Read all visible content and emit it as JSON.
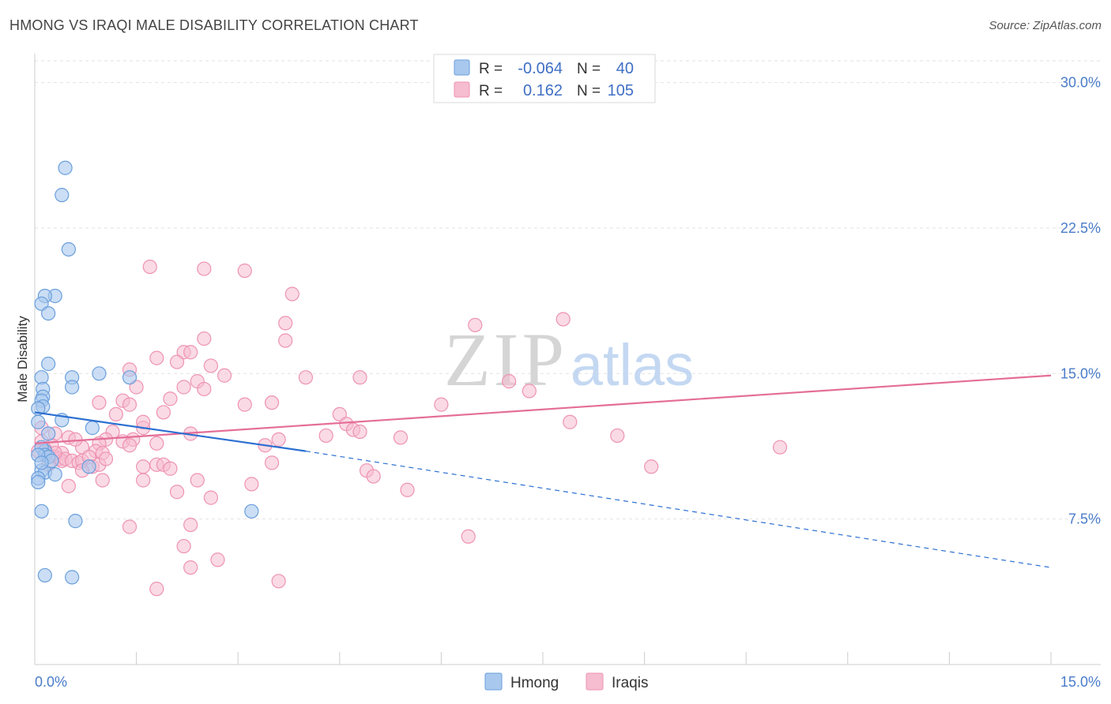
{
  "title": "HMONG VS IRAQI MALE DISABILITY CORRELATION CHART",
  "source": "Source: ZipAtlas.com",
  "watermark": {
    "zip": "ZIP",
    "atlas": "atlas"
  },
  "colors": {
    "hmong_fill": "#a9c8ee",
    "hmong_stroke": "#6a9fdc",
    "hmong_line": "#2c6fd1",
    "iraqi_fill": "#f6bcd0",
    "iraqi_stroke": "#ee93b2",
    "iraqi_line": "#e46e98",
    "tick": "#4a7cc9",
    "grid": "#e2e2e2"
  },
  "legend": {
    "rows": [
      {
        "r_label": "R =",
        "r_value": "-0.064",
        "n_label": "N =",
        "n_value": "40"
      },
      {
        "r_label": "R =",
        "r_value": "0.162",
        "n_label": "N =",
        "n_value": "105"
      }
    ]
  },
  "bottom_legend": [
    "Hmong",
    "Iraqis"
  ],
  "chart_data": {
    "type": "scatter",
    "title": "HMONG VS IRAQI MALE DISABILITY CORRELATION CHART",
    "xlabel": "",
    "ylabel": "Male Disability",
    "xlim": [
      0,
      15
    ],
    "ylim": [
      0,
      31
    ],
    "x_tick_labels": [
      "0.0%",
      "15.0%"
    ],
    "y_ticks": [
      7.5,
      15.0,
      22.5,
      30.0
    ],
    "y_tick_labels": [
      "7.5%",
      "15.0%",
      "22.5%",
      "30.0%"
    ],
    "grid": "horizontal dashed",
    "legend_position": "top-center",
    "series": [
      {
        "name": "Hmong",
        "R": -0.064,
        "N": 40,
        "trend": {
          "x": [
            0.0,
            4.0
          ],
          "y": [
            13.0,
            11.0
          ],
          "dashed_to_x": 15.0,
          "dashed_end_y": 5.0
        },
        "points": [
          [
            0.45,
            25.6
          ],
          [
            0.4,
            24.2
          ],
          [
            0.5,
            21.4
          ],
          [
            0.3,
            19.0
          ],
          [
            0.15,
            19.0
          ],
          [
            0.1,
            18.6
          ],
          [
            0.2,
            18.1
          ],
          [
            0.2,
            15.5
          ],
          [
            0.95,
            15.0
          ],
          [
            1.4,
            14.8
          ],
          [
            0.1,
            14.8
          ],
          [
            0.55,
            14.8
          ],
          [
            0.55,
            14.3
          ],
          [
            0.12,
            14.2
          ],
          [
            0.12,
            13.8
          ],
          [
            0.1,
            13.6
          ],
          [
            0.12,
            13.3
          ],
          [
            0.05,
            13.2
          ],
          [
            0.4,
            12.6
          ],
          [
            0.05,
            12.5
          ],
          [
            0.85,
            12.2
          ],
          [
            0.2,
            11.9
          ],
          [
            0.15,
            11.0
          ],
          [
            0.1,
            11.2
          ],
          [
            0.15,
            10.8
          ],
          [
            0.2,
            10.7
          ],
          [
            0.05,
            10.8
          ],
          [
            0.25,
            10.5
          ],
          [
            0.8,
            10.2
          ],
          [
            0.1,
            10.0
          ],
          [
            0.15,
            9.9
          ],
          [
            0.3,
            9.8
          ],
          [
            0.05,
            9.6
          ],
          [
            0.05,
            9.4
          ],
          [
            0.1,
            7.9
          ],
          [
            0.6,
            7.4
          ],
          [
            3.2,
            7.9
          ],
          [
            0.15,
            4.6
          ],
          [
            0.55,
            4.5
          ],
          [
            0.1,
            10.4
          ]
        ]
      },
      {
        "name": "Iraqis",
        "R": 0.162,
        "N": 105,
        "trend": {
          "x": [
            0.0,
            15.0
          ],
          "y": [
            11.4,
            14.9
          ]
        },
        "points": [
          [
            1.7,
            20.5
          ],
          [
            2.5,
            20.4
          ],
          [
            3.1,
            20.3
          ],
          [
            3.8,
            19.1
          ],
          [
            7.8,
            17.8
          ],
          [
            6.5,
            17.5
          ],
          [
            3.7,
            17.6
          ],
          [
            2.5,
            16.8
          ],
          [
            3.7,
            16.7
          ],
          [
            2.2,
            16.1
          ],
          [
            2.3,
            16.1
          ],
          [
            1.8,
            15.8
          ],
          [
            2.1,
            15.6
          ],
          [
            2.6,
            15.4
          ],
          [
            1.4,
            15.2
          ],
          [
            4.0,
            14.8
          ],
          [
            4.8,
            14.8
          ],
          [
            2.8,
            14.9
          ],
          [
            2.4,
            14.6
          ],
          [
            7.0,
            14.6
          ],
          [
            1.5,
            14.3
          ],
          [
            2.5,
            14.2
          ],
          [
            7.3,
            14.1
          ],
          [
            2.0,
            13.7
          ],
          [
            1.3,
            13.6
          ],
          [
            1.4,
            13.4
          ],
          [
            0.95,
            13.5
          ],
          [
            3.5,
            13.5
          ],
          [
            3.1,
            13.4
          ],
          [
            6.0,
            13.4
          ],
          [
            1.2,
            12.9
          ],
          [
            1.9,
            13.0
          ],
          [
            4.5,
            12.9
          ],
          [
            7.9,
            12.5
          ],
          [
            4.6,
            12.4
          ],
          [
            1.6,
            12.2
          ],
          [
            4.7,
            12.1
          ],
          [
            4.8,
            12.0
          ],
          [
            1.15,
            12.0
          ],
          [
            2.3,
            11.9
          ],
          [
            4.3,
            11.8
          ],
          [
            8.6,
            11.8
          ],
          [
            5.4,
            11.7
          ],
          [
            3.6,
            11.6
          ],
          [
            1.05,
            11.6
          ],
          [
            1.3,
            11.5
          ],
          [
            1.45,
            11.6
          ],
          [
            1.8,
            11.4
          ],
          [
            0.95,
            11.4
          ],
          [
            1.4,
            11.3
          ],
          [
            3.4,
            11.3
          ],
          [
            11.0,
            11.2
          ],
          [
            0.9,
            11.0
          ],
          [
            1.0,
            10.9
          ],
          [
            0.4,
            10.9
          ],
          [
            0.7,
            11.2
          ],
          [
            0.5,
            11.7
          ],
          [
            0.6,
            11.6
          ],
          [
            0.3,
            11.9
          ],
          [
            0.25,
            11.3
          ],
          [
            0.15,
            11.1
          ],
          [
            0.1,
            11.5
          ],
          [
            0.05,
            11.0
          ],
          [
            0.2,
            10.8
          ],
          [
            0.3,
            10.7
          ],
          [
            0.35,
            10.6
          ],
          [
            0.4,
            10.5
          ],
          [
            0.45,
            10.6
          ],
          [
            0.55,
            10.5
          ],
          [
            0.65,
            10.4
          ],
          [
            0.7,
            10.5
          ],
          [
            0.8,
            10.7
          ],
          [
            0.85,
            10.2
          ],
          [
            0.95,
            10.3
          ],
          [
            1.05,
            10.6
          ],
          [
            1.6,
            10.2
          ],
          [
            1.8,
            10.3
          ],
          [
            1.9,
            10.3
          ],
          [
            2.0,
            10.1
          ],
          [
            3.5,
            10.4
          ],
          [
            4.9,
            10.0
          ],
          [
            5.0,
            9.7
          ],
          [
            9.1,
            10.2
          ],
          [
            0.7,
            10.0
          ],
          [
            0.5,
            9.2
          ],
          [
            1.0,
            9.5
          ],
          [
            1.6,
            9.5
          ],
          [
            2.4,
            9.5
          ],
          [
            3.2,
            9.3
          ],
          [
            2.1,
            8.9
          ],
          [
            5.5,
            9.0
          ],
          [
            2.6,
            8.6
          ],
          [
            6.4,
            6.6
          ],
          [
            1.4,
            7.1
          ],
          [
            2.3,
            7.2
          ],
          [
            2.2,
            6.1
          ],
          [
            2.7,
            5.4
          ],
          [
            2.3,
            5.0
          ],
          [
            1.8,
            3.9
          ],
          [
            3.6,
            4.3
          ],
          [
            0.3,
            10.9
          ],
          [
            0.1,
            12.2
          ],
          [
            1.6,
            12.5
          ],
          [
            2.2,
            14.3
          ],
          [
            0.2,
            10.3
          ]
        ]
      }
    ]
  }
}
